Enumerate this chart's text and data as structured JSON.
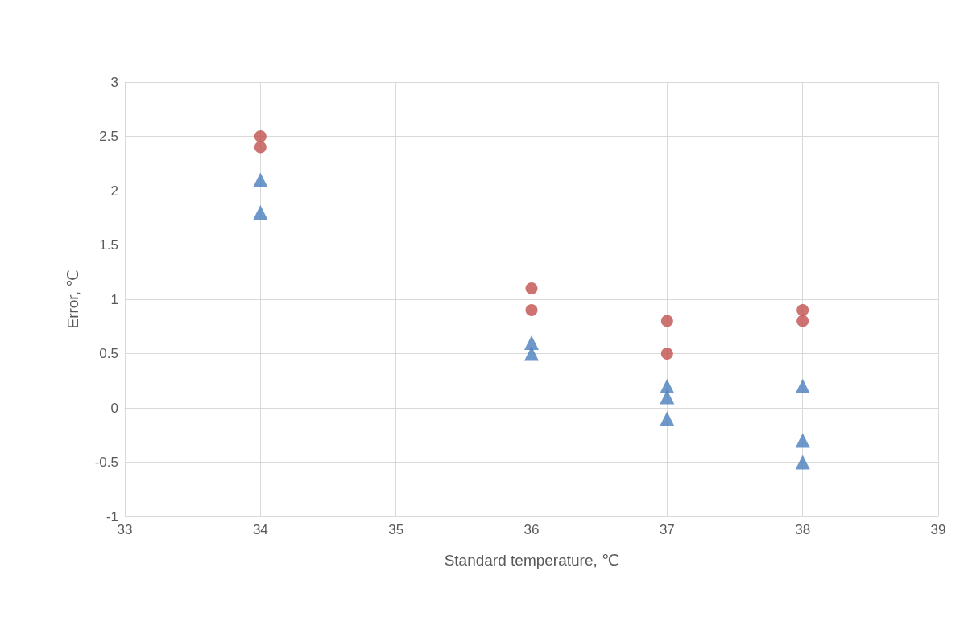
{
  "chart_data": {
    "type": "scatter",
    "xlabel": "Standard temperature, ℃",
    "ylabel": "Error, ℃",
    "xlim": [
      33,
      39
    ],
    "xticks": [
      33,
      34,
      35,
      36,
      37,
      38,
      39
    ],
    "ylim": [
      -1,
      3
    ],
    "yticks": [
      -1,
      -0.5,
      0,
      0.5,
      1,
      1.5,
      2,
      2.5,
      3
    ],
    "grid": true,
    "series": [
      {
        "color": "#4a7ebb",
        "marker": "triangle",
        "x": [
          34,
          34,
          36,
          36,
          37,
          37,
          37,
          38,
          38,
          38
        ],
        "values": [
          2.1,
          1.8,
          0.6,
          0.5,
          0.2,
          0.1,
          -0.1,
          0.2,
          -0.3,
          -0.5
        ]
      },
      {
        "color": "#c0504d",
        "marker": "circle",
        "x": [
          34,
          34,
          36,
          36,
          37,
          37,
          38,
          38
        ],
        "values": [
          2.5,
          2.4,
          1.1,
          0.9,
          0.8,
          0.5,
          0.9,
          0.8
        ]
      }
    ]
  }
}
